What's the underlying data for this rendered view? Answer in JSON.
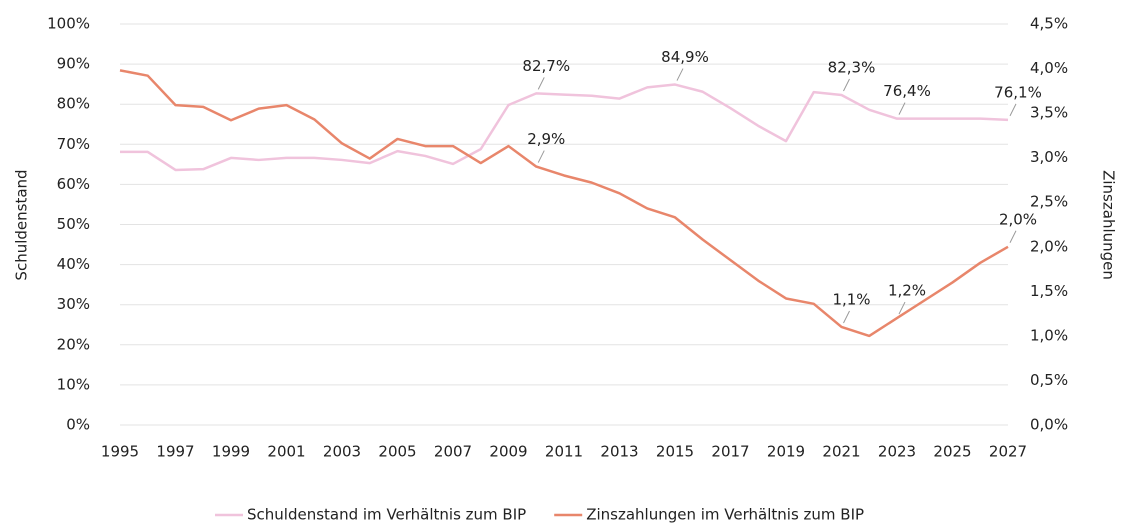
{
  "chart_data": {
    "type": "line",
    "x": [
      1995,
      1996,
      1997,
      1998,
      1999,
      2000,
      2001,
      2002,
      2003,
      2004,
      2005,
      2006,
      2007,
      2008,
      2009,
      2010,
      2011,
      2012,
      2013,
      2014,
      2015,
      2016,
      2017,
      2018,
      2019,
      2020,
      2021,
      2022,
      2023,
      2024,
      2025,
      2026,
      2027
    ],
    "xlim": [
      1995,
      2027
    ],
    "xticks": [
      1995,
      1997,
      1999,
      2001,
      2003,
      2005,
      2007,
      2009,
      2011,
      2013,
      2015,
      2017,
      2019,
      2021,
      2023,
      2025,
      2027
    ],
    "ylabel": "Schuldenstand",
    "y2label": "Zinszahlungen",
    "ylim": [
      0,
      100
    ],
    "yticks": [
      {
        "value": 0,
        "label": "0%"
      },
      {
        "value": 10,
        "label": "10%"
      },
      {
        "value": 20,
        "label": "20%"
      },
      {
        "value": 30,
        "label": "30%"
      },
      {
        "value": 40,
        "label": "40%"
      },
      {
        "value": 50,
        "label": "50%"
      },
      {
        "value": 60,
        "label": "60%"
      },
      {
        "value": 70,
        "label": "70%"
      },
      {
        "value": 80,
        "label": "80%"
      },
      {
        "value": 90,
        "label": "90%"
      },
      {
        "value": 100,
        "label": "100%"
      }
    ],
    "y2lim": [
      0,
      4.5
    ],
    "y2ticks": [
      {
        "value": 0,
        "label": "0,0%"
      },
      {
        "value": 0.5,
        "label": "0,5%"
      },
      {
        "value": 1,
        "label": "1,0%"
      },
      {
        "value": 1.5,
        "label": "1,5%"
      },
      {
        "value": 2,
        "label": "2,0%"
      },
      {
        "value": 2.5,
        "label": "2,5%"
      },
      {
        "value": 3,
        "label": "3,0%"
      },
      {
        "value": 3.5,
        "label": "3,5%"
      },
      {
        "value": 4,
        "label": "4,0%"
      },
      {
        "value": 4.5,
        "label": "4,5%"
      }
    ],
    "grid": true,
    "legend": "bottom",
    "series": [
      {
        "name": "Schuldenstand im Verhältnis zum BIP",
        "color": "#f0c3dc",
        "values": [
          68.1,
          68.1,
          63.6,
          63.8,
          66.6,
          66.1,
          66.6,
          66.6,
          66.1,
          65.3,
          68.3,
          67.1,
          65.1,
          68.8,
          79.8,
          82.7,
          82.4,
          82.1,
          81.4,
          84.2,
          84.9,
          83.1,
          79,
          74.6,
          70.8,
          83.0,
          82.3,
          78.6,
          76.4,
          76.4,
          76.4,
          76.4,
          76.1
        ],
        "value_labels": [
          null,
          null,
          null,
          null,
          null,
          null,
          null,
          null,
          null,
          null,
          null,
          null,
          null,
          null,
          null,
          "82,7%",
          null,
          null,
          null,
          null,
          "84,9%",
          null,
          null,
          null,
          null,
          null,
          "82,3%",
          null,
          "76,4%",
          null,
          null,
          null,
          "76,1%"
        ]
      },
      {
        "name": "Zinszahlungen im Verhältnis zum BIP",
        "color": "#e8866b",
        "axis": "y2",
        "values": [
          3.98,
          3.92,
          3.59,
          3.57,
          3.42,
          3.55,
          3.59,
          3.43,
          3.16,
          2.99,
          3.21,
          3.13,
          3.13,
          2.94,
          3.13,
          2.9,
          2.8,
          2.72,
          2.6,
          2.43,
          2.33,
          2.08,
          1.85,
          1.62,
          1.42,
          1.36,
          1.1,
          1.0,
          1.2,
          1.4,
          1.6,
          1.82,
          2.0
        ],
        "value_labels": [
          null,
          null,
          null,
          null,
          null,
          null,
          null,
          null,
          null,
          null,
          null,
          null,
          null,
          null,
          null,
          "2,9%",
          null,
          null,
          null,
          null,
          null,
          null,
          null,
          null,
          null,
          null,
          "1,1%",
          null,
          "1,2%",
          null,
          null,
          null,
          "2,0%"
        ]
      }
    ]
  }
}
